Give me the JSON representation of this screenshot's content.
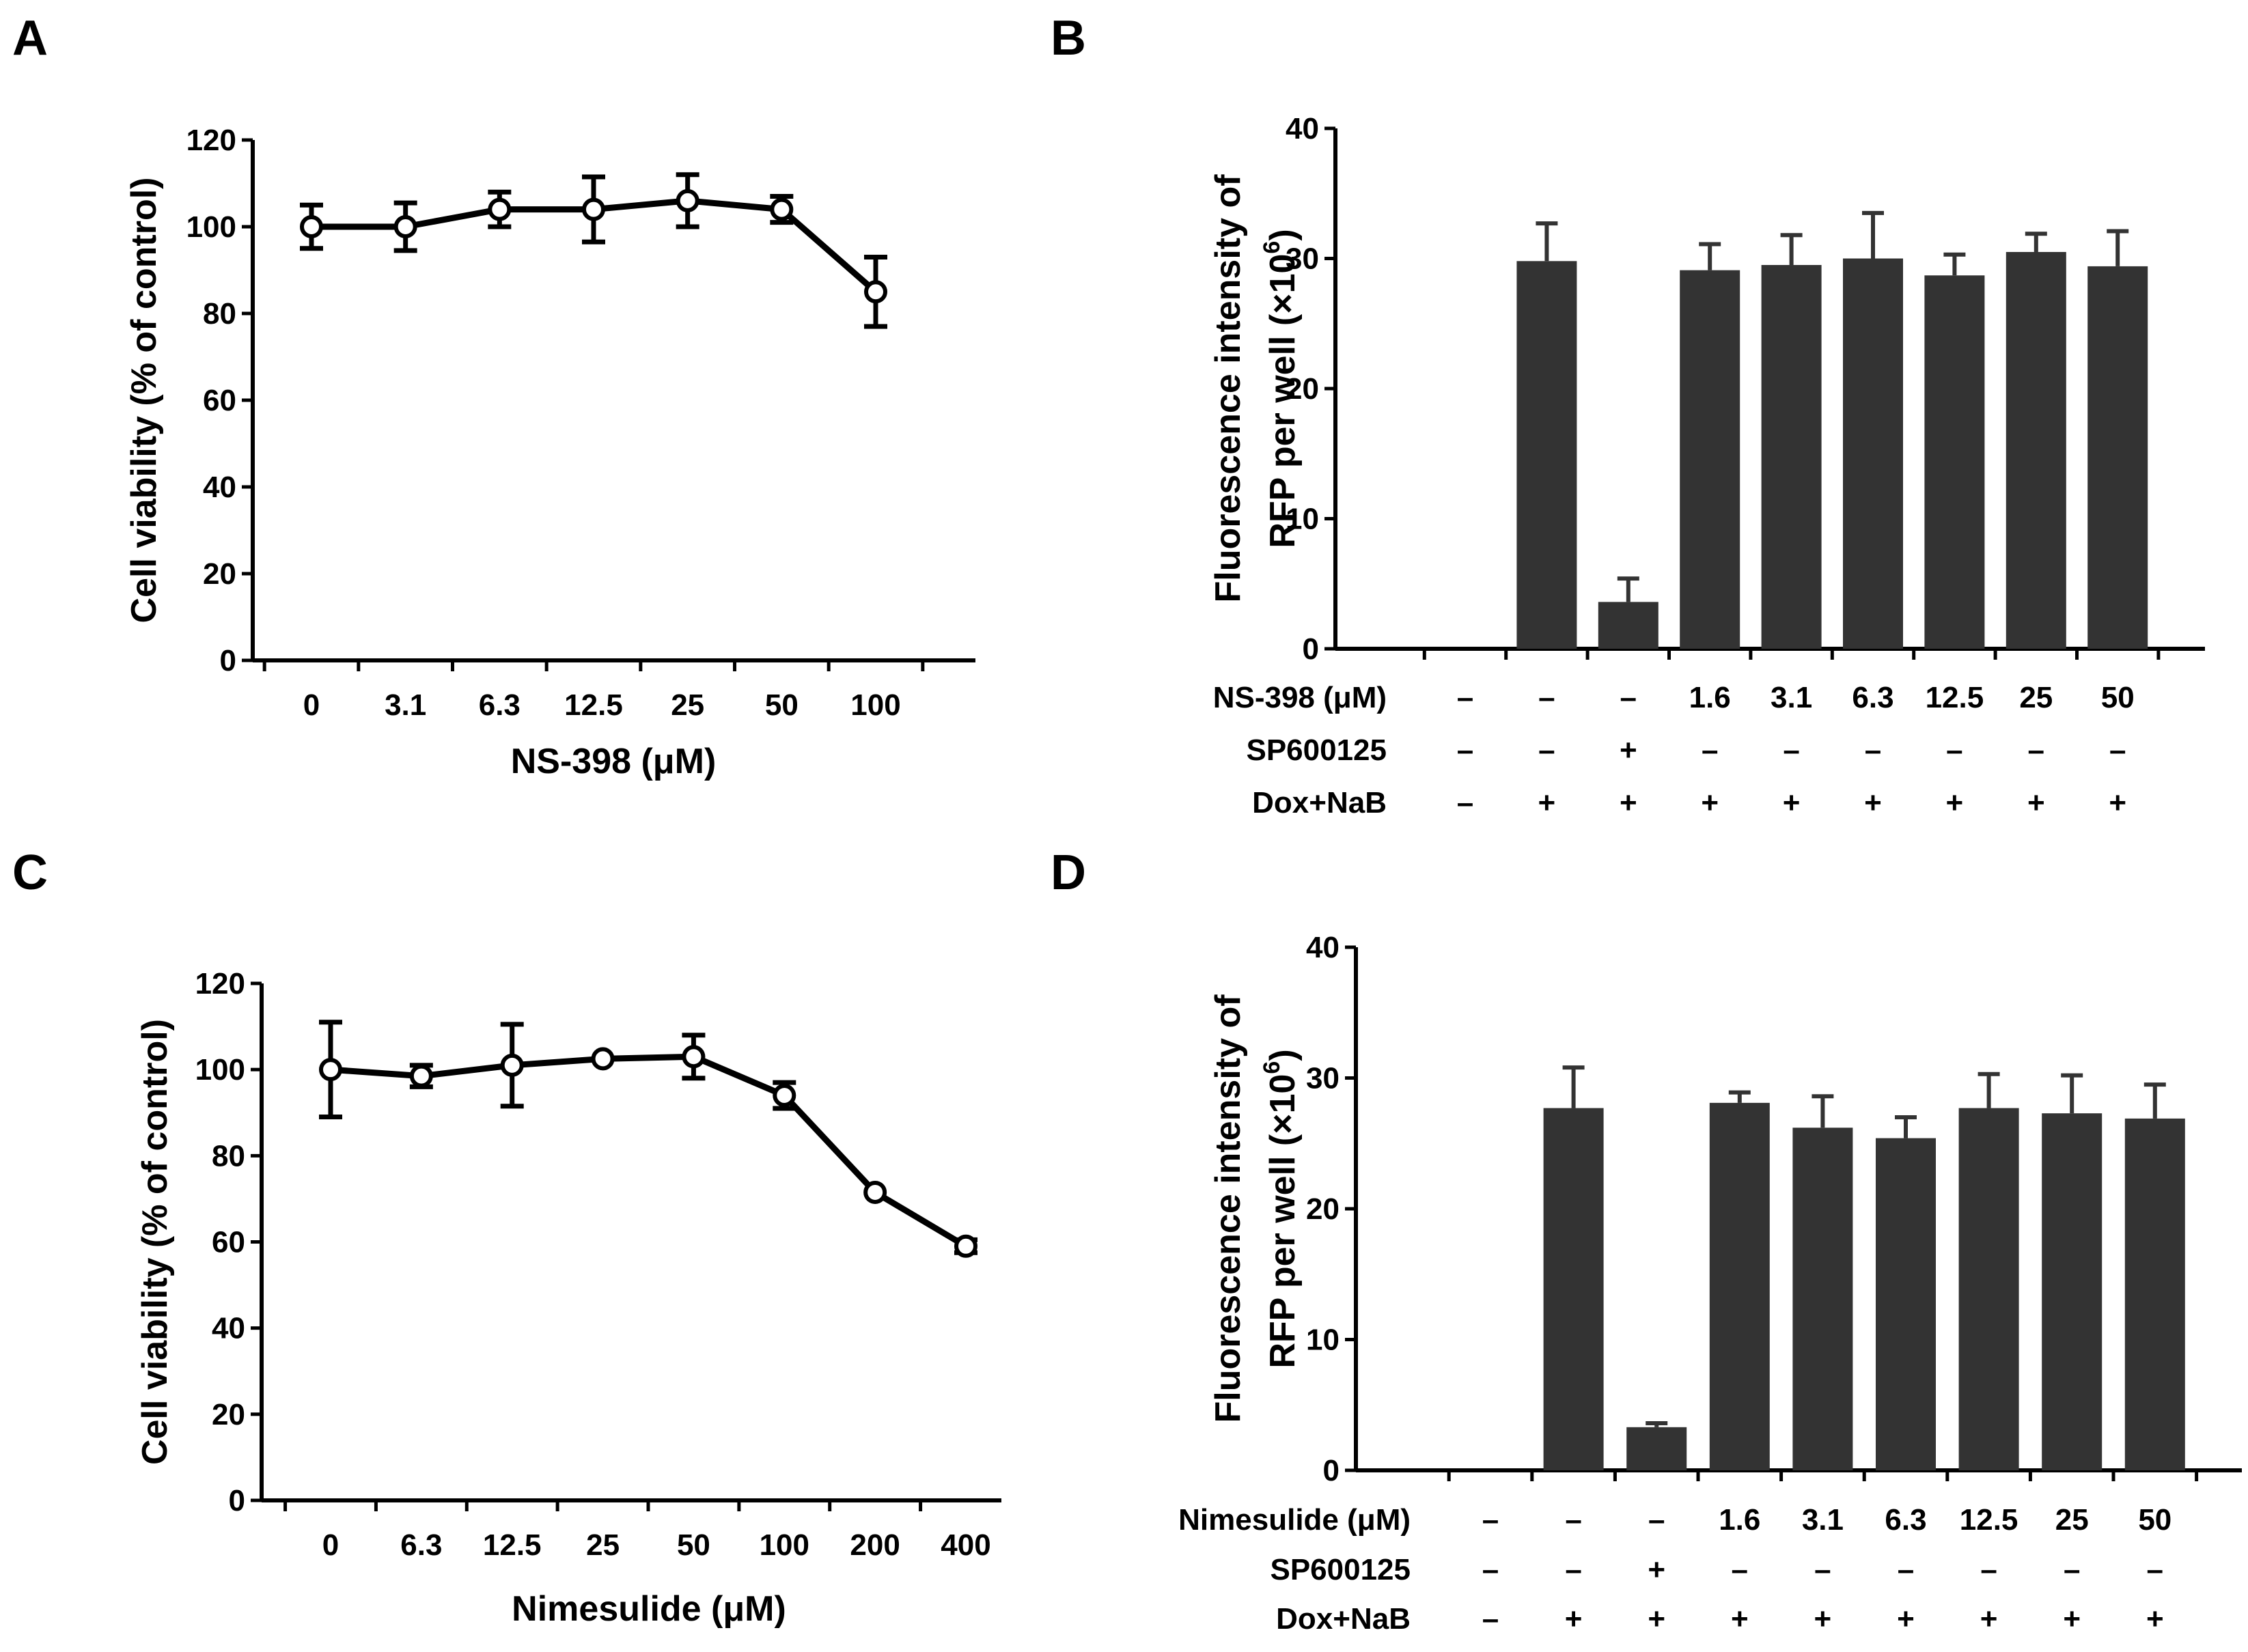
{
  "chart_data": [
    {
      "panel": "A",
      "type": "line",
      "title": "",
      "xlabel": "NS-398 (μM)",
      "ylabel": "Cell viability (% of control)",
      "ylim": [
        0,
        120
      ],
      "yticks": [
        "0",
        "20",
        "40",
        "60",
        "80",
        "100",
        "120"
      ],
      "categories": [
        "0",
        "3.1",
        "6.3",
        "12.5",
        "25",
        "50",
        "100"
      ],
      "series": [
        {
          "name": "NS-398",
          "values": [
            100,
            100,
            104,
            104,
            106,
            104,
            85
          ],
          "errors": [
            5,
            5.5,
            4,
            7.5,
            6,
            3,
            8
          ]
        }
      ]
    },
    {
      "panel": "B",
      "type": "bar",
      "title": "",
      "ylabel": "Fluorescence intensity of RFP per well (×10^6)",
      "ylabel_line1": "Fluorescence intensity of",
      "ylabel_line2_prefix": "RFP per well (×10",
      "ylabel_exp": "6",
      "ylabel_close": ")",
      "ylim": [
        0,
        40
      ],
      "yticks": [
        "0",
        "10",
        "20",
        "30",
        "40"
      ],
      "values": [
        0,
        29.8,
        3.6,
        29.1,
        29.5,
        30.0,
        28.7,
        30.5,
        29.4
      ],
      "errors": [
        0,
        2.9,
        1.8,
        2.0,
        2.3,
        3.5,
        1.6,
        1.4,
        2.7
      ],
      "treatments": [
        {
          "label": "NS-398 (μM)",
          "values": [
            "–",
            "–",
            "–",
            "1.6",
            "3.1",
            "6.3",
            "12.5",
            "25",
            "50"
          ]
        },
        {
          "label": "SP600125",
          "values": [
            "–",
            "–",
            "+",
            "–",
            "–",
            "–",
            "–",
            "–",
            "–"
          ]
        },
        {
          "label": "Dox+NaB",
          "values": [
            "–",
            "+",
            "+",
            "+",
            "+",
            "+",
            "+",
            "+",
            "+"
          ]
        }
      ]
    },
    {
      "panel": "C",
      "type": "line",
      "title": "",
      "xlabel": "Nimesulide (μM)",
      "ylabel": "Cell viability (% of control)",
      "ylim": [
        0,
        120
      ],
      "yticks": [
        "0",
        "20",
        "40",
        "60",
        "80",
        "100",
        "120"
      ],
      "categories": [
        "0",
        "6.3",
        "12.5",
        "25",
        "50",
        "100",
        "200",
        "400"
      ],
      "series": [
        {
          "name": "Nimesulide",
          "values": [
            100,
            98.5,
            101,
            102.5,
            103,
            94,
            71.5,
            59
          ],
          "errors": [
            11,
            2.5,
            9.5,
            0,
            5,
            3,
            0,
            1.5
          ]
        }
      ]
    },
    {
      "panel": "D",
      "type": "bar",
      "title": "",
      "ylabel": "Fluorescence intensity of RFP per well (×10^6)",
      "ylabel_line1": "Fluorescence intensity of",
      "ylabel_line2_prefix": "RFP per well (×10",
      "ylabel_exp": "6",
      "ylabel_close": ")",
      "ylim": [
        0,
        40
      ],
      "yticks": [
        "0",
        "10",
        "20",
        "30",
        "40"
      ],
      "values": [
        0,
        27.7,
        3.3,
        28.1,
        26.2,
        25.4,
        27.7,
        27.3,
        26.9
      ],
      "errors": [
        0,
        3.1,
        0.3,
        0.8,
        2.4,
        1.6,
        2.6,
        2.9,
        2.6
      ],
      "treatments": [
        {
          "label": "Nimesulide (μM)",
          "values": [
            "–",
            "–",
            "–",
            "1.6",
            "3.1",
            "6.3",
            "12.5",
            "25",
            "50"
          ]
        },
        {
          "label": "SP600125",
          "values": [
            "–",
            "–",
            "+",
            "–",
            "–",
            "–",
            "–",
            "–",
            "–"
          ]
        },
        {
          "label": "Dox+NaB",
          "values": [
            "–",
            "+",
            "+",
            "+",
            "+",
            "+",
            "+",
            "+",
            "+"
          ]
        }
      ]
    }
  ]
}
